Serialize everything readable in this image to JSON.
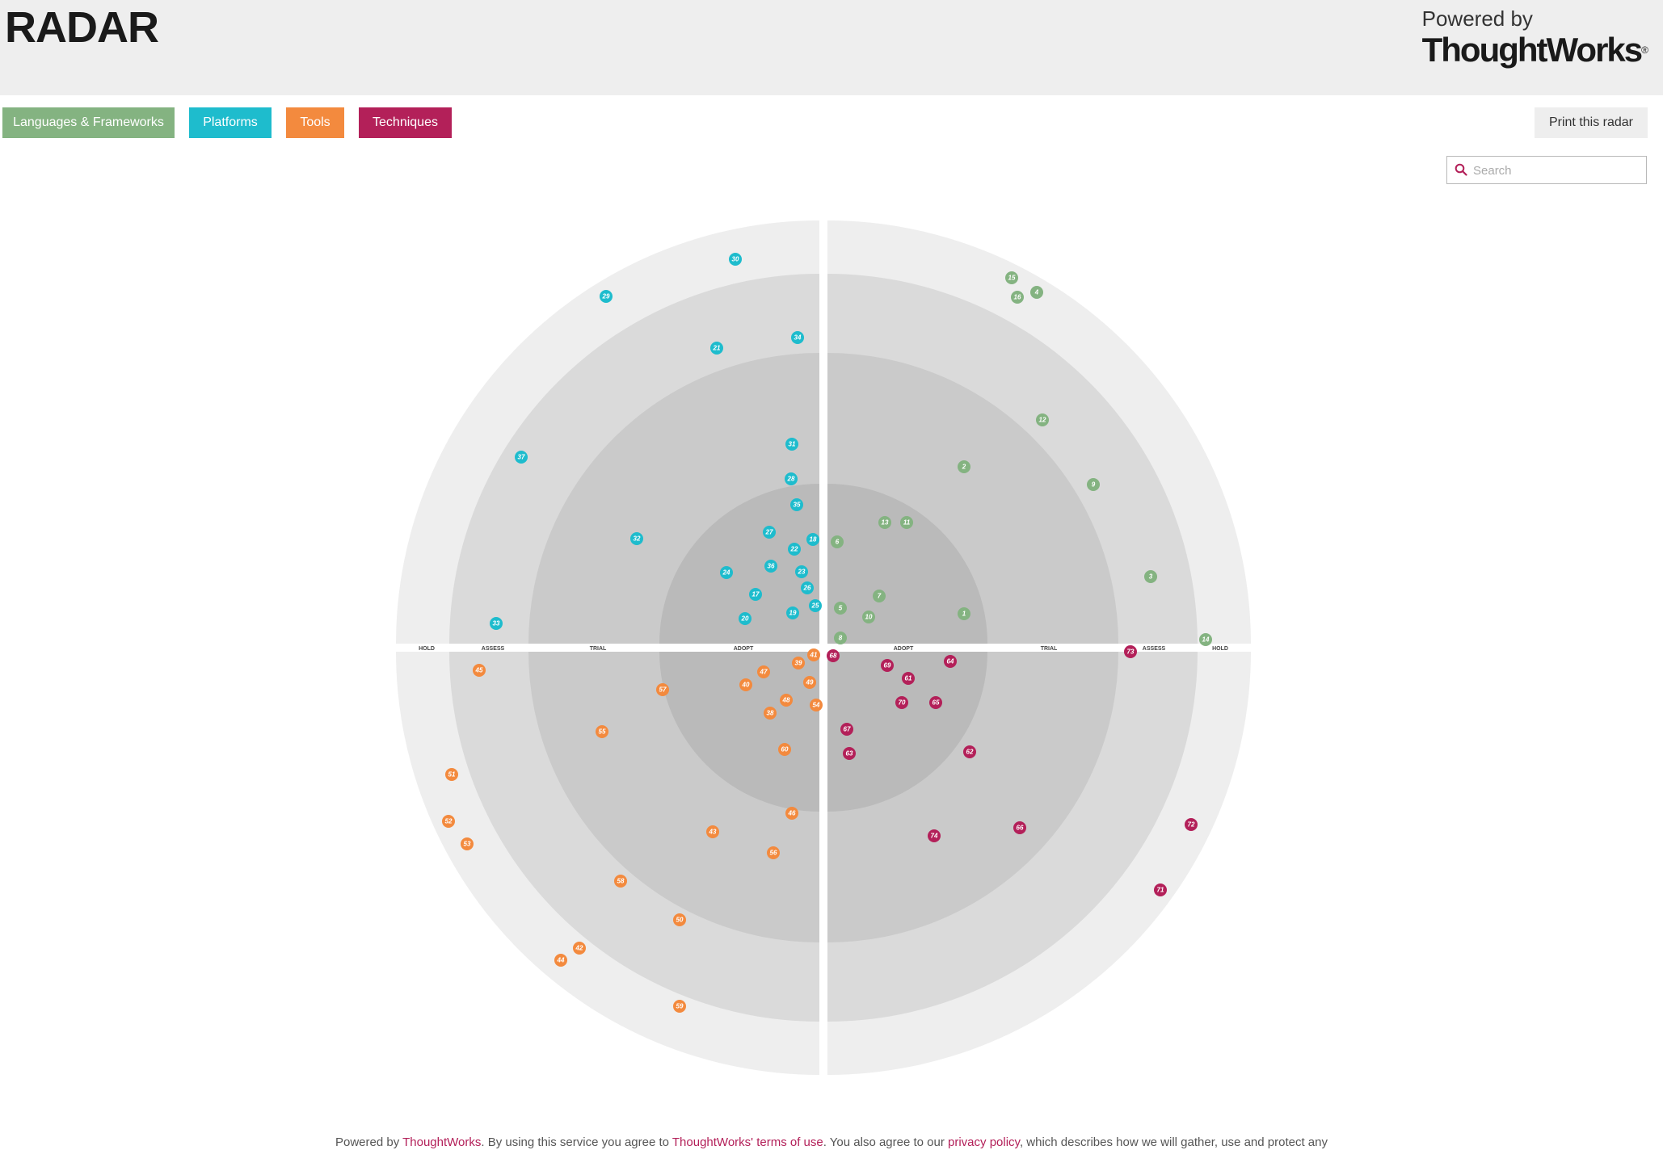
{
  "header": {
    "title": "RADAR",
    "powered_by": "Powered by",
    "brand": "ThoughtWorks",
    "brand_mark": "®"
  },
  "quadrant_buttons": [
    {
      "label": "Languages & Frameworks",
      "color": "#84b381"
    },
    {
      "label": "Platforms",
      "color": "#1ebccd"
    },
    {
      "label": "Tools",
      "color": "#f38a3e"
    },
    {
      "label": "Techniques",
      "color": "#b32059"
    }
  ],
  "print_button": "Print this radar",
  "search": {
    "placeholder": "Search",
    "icon": "search-icon"
  },
  "radar": {
    "ring_names": [
      "ADOPT",
      "TRIAL",
      "ASSESS",
      "HOLD"
    ],
    "ring_colors": [
      "#bababa",
      "#cacaca",
      "#dadada",
      "#eeeeee"
    ],
    "quadrants": [
      {
        "name": "Languages & Frameworks",
        "color": "#84b381",
        "blips": [
          1,
          2,
          3,
          4,
          5,
          6,
          7,
          8,
          9,
          10,
          11,
          12,
          13,
          14,
          15,
          16
        ]
      },
      {
        "name": "Platforms",
        "color": "#1ebccd",
        "blips": [
          17,
          18,
          19,
          20,
          21,
          22,
          23,
          24,
          25,
          26,
          27,
          28,
          29,
          30,
          31,
          32,
          33,
          34,
          35,
          36,
          37
        ]
      },
      {
        "name": "Tools",
        "color": "#f38a3e",
        "blips": [
          38,
          39,
          40,
          41,
          42,
          43,
          44,
          45,
          46,
          47,
          48,
          49,
          50,
          51,
          52,
          53,
          54,
          55,
          56,
          57,
          58,
          59,
          60
        ]
      },
      {
        "name": "Techniques",
        "color": "#b32059",
        "blips": [
          61,
          62,
          63,
          64,
          65,
          66,
          67,
          68,
          69,
          70,
          71,
          72,
          73,
          74
        ]
      }
    ]
  },
  "footer": {
    "t1": "Powered by ",
    "l1": "ThoughtWorks",
    "t2": ". By using this service you agree to ",
    "l2": "ThoughtWorks' terms of use",
    "t3": ". You also agree to our ",
    "l3": "privacy policy",
    "t4": ", which describes how we will gather, use and protect any"
  }
}
